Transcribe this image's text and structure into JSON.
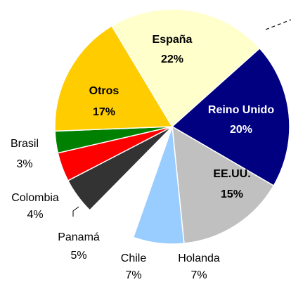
{
  "chart_data": {
    "type": "pie",
    "categories": [
      "España",
      "Reino Unido",
      "EE.UU.",
      "Holanda",
      "Chile",
      "Panamá",
      "Colombia",
      "Brasil",
      "Otros"
    ],
    "values": [
      22,
      20,
      15,
      7,
      7,
      5,
      4,
      3,
      17
    ],
    "value_labels": [
      "22%",
      "20%",
      "15%",
      "7%",
      "7%",
      "5%",
      "4%",
      "3%",
      "17%"
    ],
    "colors": [
      "#ffffcc",
      "#000080",
      "#c0c0c0",
      "#99ccff",
      "#ffffff",
      "#333333",
      "#ff0000",
      "#008000",
      "#ffcc00"
    ]
  }
}
